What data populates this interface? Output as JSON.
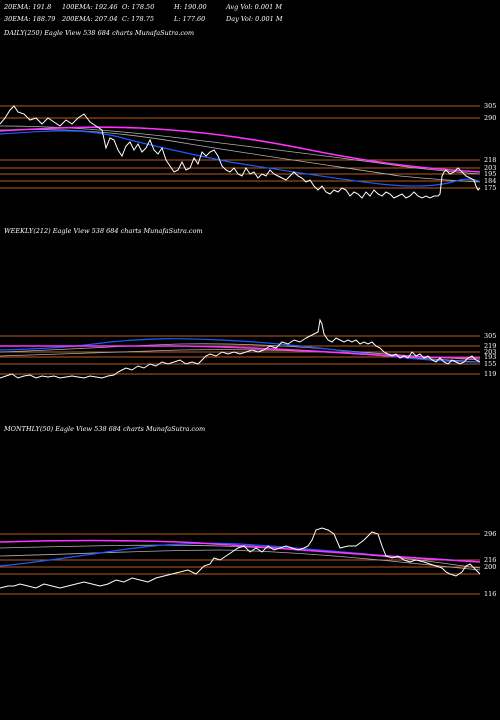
{
  "header": {
    "row1": [
      "20EMA: 191.8",
      "100EMA: 192.46",
      "O: 178.50",
      "H: 190.00",
      "Avg Vol: 0.001 M"
    ],
    "row2": [
      "30EMA: 188.79",
      "200EMA: 207.04",
      "C: 178.75",
      "L: 177.60",
      "Day Vol: 0.001 M"
    ]
  },
  "colors": {
    "background": "#000000",
    "price": "#ffffff",
    "ema_short": "#1a5cff",
    "ema_long": "#ff33ff",
    "ema_other": "#b0b0b0",
    "level_line": "#b85c1a"
  },
  "chart_data": [
    {
      "type": "line",
      "label": "DAILY(250) Eagle  View  538          684  charts MunafaSutra.com",
      "y_ticks": [
        "305",
        "290",
        "218",
        "203",
        "195",
        "184",
        "175"
      ],
      "levels": [
        305,
        290,
        218,
        203,
        195,
        184,
        175
      ]
    },
    {
      "type": "line",
      "label": "WEEKLY(212) Eagle  View  538          684  charts MunafaSutra.com",
      "y_ticks": [
        "305",
        "219",
        "203",
        "193",
        "155",
        "119"
      ],
      "levels": [
        305,
        219,
        203,
        193,
        155,
        119
      ]
    },
    {
      "type": "line",
      "label": "MONTHLY(50) Eagle  View  538          684  charts MunafaSutra.com",
      "y_ticks": [
        "296",
        "216",
        "200",
        "116"
      ],
      "levels": [
        296,
        216,
        200,
        116
      ]
    }
  ]
}
